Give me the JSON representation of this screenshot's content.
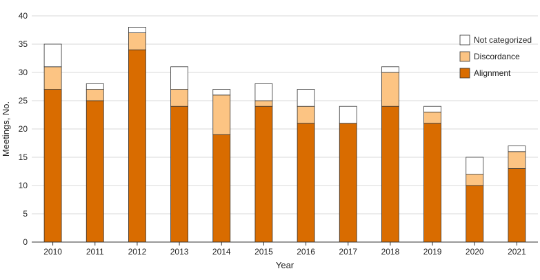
{
  "chart_data": {
    "type": "bar",
    "stacked": true,
    "title": "",
    "xlabel": "Year",
    "ylabel": "Meetings, No.",
    "ylim": [
      0,
      40
    ],
    "yticks": [
      0,
      5,
      10,
      15,
      20,
      25,
      30,
      35,
      40
    ],
    "grid": "horizontal",
    "legend_position": "top-right",
    "categories": [
      "2010",
      "2011",
      "2012",
      "2013",
      "2014",
      "2015",
      "2016",
      "2017",
      "2018",
      "2019",
      "2020",
      "2021"
    ],
    "series": [
      {
        "name": "Alignment",
        "color": "#d96c00",
        "values": [
          27,
          25,
          34,
          24,
          19,
          24,
          21,
          21,
          24,
          21,
          10,
          13
        ]
      },
      {
        "name": "Discordance",
        "color": "#fcc483",
        "values": [
          4,
          2,
          3,
          3,
          7,
          1,
          3,
          0,
          6,
          2,
          2,
          3
        ]
      },
      {
        "name": "Not categorized",
        "color": "#ffffff",
        "values": [
          4,
          1,
          1,
          4,
          1,
          3,
          3,
          3,
          1,
          1,
          3,
          1
        ]
      }
    ],
    "legend_order": [
      "Not categorized",
      "Discordance",
      "Alignment"
    ]
  }
}
